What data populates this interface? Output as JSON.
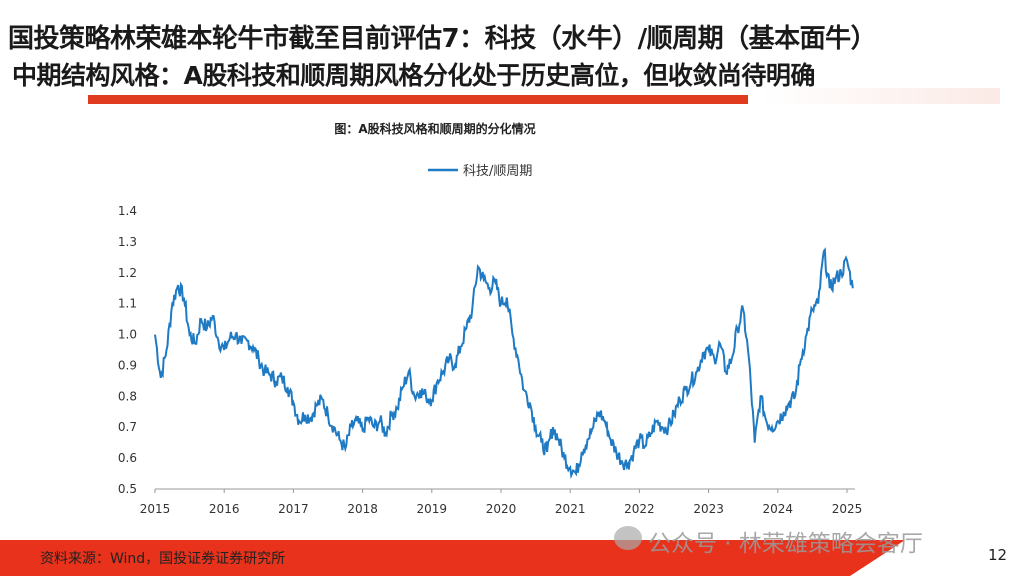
{
  "header": {
    "title": "国投策略林荣雄本轮牛市截至目前评估7：科技（水牛）/顺周期（基本面牛）",
    "subtitle": "中期结构风格：A股科技和顺周期风格分化处于历史高位，但收敛尚待明确",
    "accent": "#e03a1f"
  },
  "chart_data": {
    "type": "line",
    "title": "图：A股科技风格和顺周期的分化情况",
    "xlabel": "",
    "ylabel": "",
    "ylim": [
      0.5,
      1.4
    ],
    "yticks": [
      "0.5",
      "0.6",
      "0.7",
      "0.8",
      "0.9",
      "1.0",
      "1.1",
      "1.2",
      "1.3",
      "1.4"
    ],
    "xticks": [
      "2015",
      "2016",
      "2017",
      "2018",
      "2019",
      "2020",
      "2021",
      "2022",
      "2023",
      "2024",
      "2025"
    ],
    "grid": false,
    "legend": "top",
    "series": [
      {
        "name": "科技/顺周期",
        "color": "#1f7ac4",
        "x": [
          "2015-01",
          "2015-02",
          "2015-03",
          "2015-04",
          "2015-05",
          "2015-06",
          "2015-07",
          "2015-08",
          "2015-09",
          "2015-10",
          "2015-11",
          "2015-12",
          "2016-01",
          "2016-02",
          "2016-03",
          "2016-04",
          "2016-05",
          "2016-06",
          "2016-07",
          "2016-08",
          "2016-09",
          "2016-10",
          "2016-11",
          "2016-12",
          "2017-01",
          "2017-02",
          "2017-03",
          "2017-04",
          "2017-05",
          "2017-06",
          "2017-07",
          "2017-08",
          "2017-09",
          "2017-10",
          "2017-11",
          "2017-12",
          "2018-01",
          "2018-02",
          "2018-03",
          "2018-04",
          "2018-05",
          "2018-06",
          "2018-07",
          "2018-08",
          "2018-09",
          "2018-10",
          "2018-11",
          "2018-12",
          "2019-01",
          "2019-02",
          "2019-03",
          "2019-04",
          "2019-05",
          "2019-06",
          "2019-07",
          "2019-08",
          "2019-09",
          "2019-10",
          "2019-11",
          "2019-12",
          "2020-01",
          "2020-02",
          "2020-03",
          "2020-04",
          "2020-05",
          "2020-06",
          "2020-07",
          "2020-08",
          "2020-09",
          "2020-10",
          "2020-11",
          "2020-12",
          "2021-01",
          "2021-02",
          "2021-03",
          "2021-04",
          "2021-05",
          "2021-06",
          "2021-07",
          "2021-08",
          "2021-09",
          "2021-10",
          "2021-11",
          "2021-12",
          "2022-01",
          "2022-02",
          "2022-03",
          "2022-04",
          "2022-05",
          "2022-06",
          "2022-07",
          "2022-08",
          "2022-09",
          "2022-10",
          "2022-11",
          "2022-12",
          "2023-01",
          "2023-02",
          "2023-03",
          "2023-04",
          "2023-05",
          "2023-06",
          "2023-07",
          "2023-08",
          "2023-09",
          "2023-10",
          "2023-11",
          "2023-12",
          "2024-01",
          "2024-02",
          "2024-03",
          "2024-04",
          "2024-05",
          "2024-06",
          "2024-07",
          "2024-08",
          "2024-09",
          "2024-10",
          "2024-11",
          "2024-12",
          "2025-01",
          "2025-02"
        ],
        "values": [
          1.0,
          0.86,
          0.95,
          1.1,
          1.16,
          1.12,
          1.0,
          0.97,
          1.05,
          1.02,
          1.06,
          0.98,
          0.95,
          0.99,
          1.0,
          0.97,
          0.98,
          0.96,
          0.92,
          0.88,
          0.87,
          0.85,
          0.86,
          0.83,
          0.78,
          0.72,
          0.74,
          0.73,
          0.77,
          0.79,
          0.74,
          0.7,
          0.66,
          0.63,
          0.7,
          0.72,
          0.69,
          0.73,
          0.7,
          0.72,
          0.68,
          0.74,
          0.76,
          0.83,
          0.88,
          0.8,
          0.82,
          0.8,
          0.79,
          0.85,
          0.88,
          0.92,
          0.9,
          0.96,
          1.02,
          1.08,
          1.22,
          1.18,
          1.15,
          1.17,
          1.1,
          1.12,
          1.0,
          0.92,
          0.82,
          0.78,
          0.7,
          0.65,
          0.62,
          0.7,
          0.66,
          0.6,
          0.57,
          0.55,
          0.62,
          0.66,
          0.7,
          0.75,
          0.72,
          0.66,
          0.62,
          0.59,
          0.58,
          0.62,
          0.66,
          0.64,
          0.68,
          0.72,
          0.7,
          0.7,
          0.74,
          0.79,
          0.82,
          0.85,
          0.88,
          0.94,
          0.95,
          0.92,
          0.97,
          0.88,
          0.92,
          1.02,
          1.08,
          0.92,
          0.65,
          0.8,
          0.72,
          0.7,
          0.72,
          0.75,
          0.78,
          0.8,
          0.92,
          1.0,
          1.08,
          1.1,
          1.27,
          1.15,
          1.18,
          1.2,
          1.24,
          1.15
        ]
      }
    ]
  },
  "footer": {
    "source": "资料来源：Wind，国投证券证券研究所",
    "watermark": "公众号 · 林荣雄策略会客厅",
    "page": "12",
    "band_color": "#e8321c"
  }
}
